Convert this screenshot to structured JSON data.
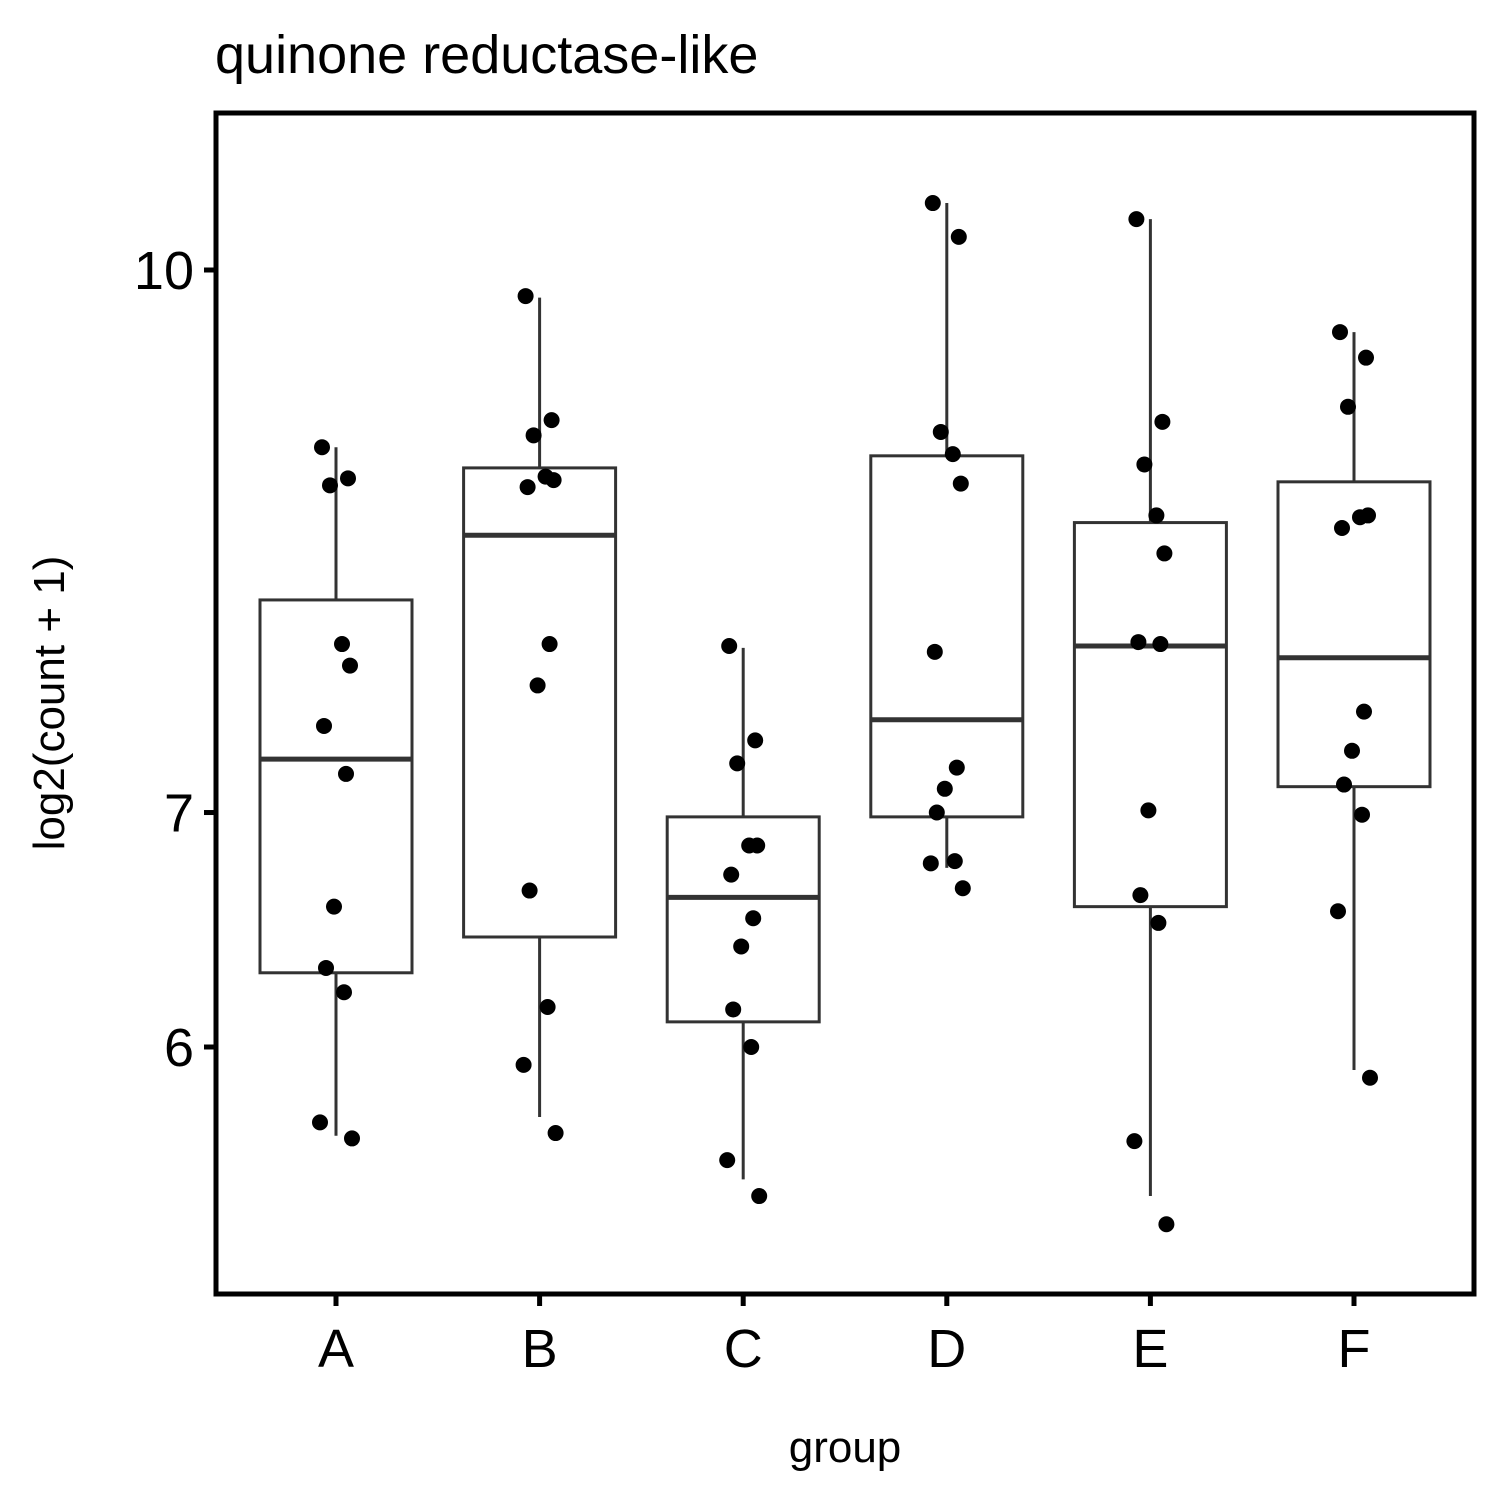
{
  "chart_data": {
    "type": "boxplot",
    "title": "quinone reductase-like",
    "xlabel": "group",
    "ylabel": "log2(count + 1)",
    "categories": [
      "A",
      "B",
      "C",
      "D",
      "E",
      "F"
    ],
    "y_ticks": [
      6,
      7,
      10
    ],
    "ylim": [
      5.0,
      10.25
    ],
    "y_scale": "log",
    "grid": false,
    "legend": "none",
    "colors": {
      "box_stroke": "#333333",
      "point_fill": "#000000",
      "panel_border": "#000000"
    },
    "boxes": [
      {
        "group": "A",
        "whisker_low": 5.66,
        "q1": 6.3,
        "median": 7.25,
        "q3": 8.05,
        "whisker_high": 8.9
      },
      {
        "group": "B",
        "whisker_low": 5.73,
        "q1": 6.45,
        "median": 8.4,
        "q3": 8.78,
        "whisker_high": 9.82
      },
      {
        "group": "C",
        "whisker_low": 5.5,
        "q1": 6.1,
        "median": 6.62,
        "q3": 6.98,
        "whisker_high": 7.8
      },
      {
        "group": "D",
        "whisker_low": 6.75,
        "q1": 6.98,
        "median": 7.44,
        "q3": 8.85,
        "whisker_high": 10.45
      },
      {
        "group": "E",
        "whisker_low": 5.44,
        "q1": 6.58,
        "median": 7.81,
        "q3": 8.47,
        "whisker_high": 10.34
      },
      {
        "group": "F",
        "whisker_low": 5.91,
        "q1": 7.12,
        "median": 7.75,
        "q3": 8.7,
        "whisker_high": 9.6
      }
    ],
    "points": [
      {
        "group": "A",
        "values": [
          8.9,
          8.72,
          8.68,
          7.82,
          7.71,
          7.41,
          7.18,
          6.58,
          6.32,
          6.22,
          5.71,
          5.65
        ]
      },
      {
        "group": "B",
        "values": [
          9.83,
          9.06,
          8.97,
          8.73,
          8.71,
          8.67,
          7.82,
          7.61,
          6.65,
          6.16,
          5.93,
          5.67
        ]
      },
      {
        "group": "C",
        "values": [
          7.81,
          7.34,
          7.23,
          6.85,
          6.85,
          6.72,
          6.53,
          6.41,
          6.15,
          6.0,
          5.57,
          5.44
        ]
      },
      {
        "group": "D",
        "values": [
          10.45,
          10.22,
          8.99,
          8.86,
          8.69,
          7.78,
          7.21,
          7.11,
          7.0,
          6.78,
          6.77,
          6.66
        ]
      },
      {
        "group": "E",
        "values": [
          10.34,
          9.05,
          8.8,
          8.51,
          8.3,
          7.83,
          7.82,
          7.01,
          6.63,
          6.51,
          5.64,
          5.34
        ]
      },
      {
        "group": "F",
        "values": [
          9.6,
          9.44,
          9.14,
          8.5,
          8.51,
          8.44,
          7.48,
          7.29,
          7.13,
          6.99,
          6.56,
          5.88
        ]
      }
    ]
  }
}
